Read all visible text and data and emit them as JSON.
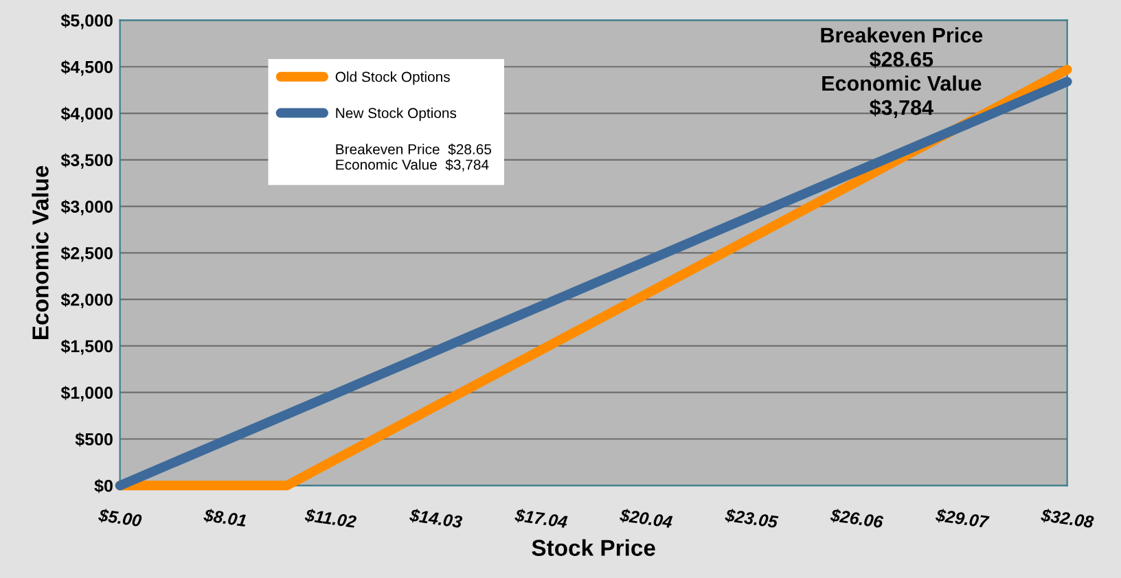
{
  "chart_data": {
    "type": "line",
    "xlabel": "Stock Price",
    "ylabel": "Economic Value",
    "series": [
      {
        "name": "Old Stock Options",
        "color": "#ff8c00",
        "x": [
          5.0,
          9.77,
          32.08
        ],
        "values": [
          0,
          0,
          4470
        ]
      },
      {
        "name": "New Stock Options",
        "color": "#3d6a9a",
        "x": [
          5.0,
          32.08
        ],
        "values": [
          0,
          4340
        ]
      }
    ],
    "xlim": [
      5.0,
      32.08
    ],
    "xticks": [
      {
        "value": 5.0,
        "label": "$5.00"
      },
      {
        "value": 8.01,
        "label": "$8.01"
      },
      {
        "value": 11.02,
        "label": "$11.02"
      },
      {
        "value": 14.03,
        "label": "$14.03"
      },
      {
        "value": 17.04,
        "label": "$17.04"
      },
      {
        "value": 20.04,
        "label": "$20.04"
      },
      {
        "value": 23.05,
        "label": "$23.05"
      },
      {
        "value": 26.06,
        "label": "$26.06"
      },
      {
        "value": 29.07,
        "label": "$29.07"
      },
      {
        "value": 32.08,
        "label": "$32.08"
      }
    ],
    "ylim": [
      0,
      5000
    ],
    "yticks": [
      {
        "value": 0,
        "label": "$0"
      },
      {
        "value": 500,
        "label": "$500"
      },
      {
        "value": 1000,
        "label": "$1,000"
      },
      {
        "value": 1500,
        "label": "$1,500"
      },
      {
        "value": 2000,
        "label": "$2,000"
      },
      {
        "value": 2500,
        "label": "$2,500"
      },
      {
        "value": 3000,
        "label": "$3,000"
      },
      {
        "value": 3500,
        "label": "$3,500"
      },
      {
        "value": 4000,
        "label": "$4,000"
      },
      {
        "value": 4500,
        "label": "$4,500"
      },
      {
        "value": 5000,
        "label": "$5,000"
      }
    ],
    "grid": "y",
    "legend": "top left",
    "marker": "none",
    "line_style": "solid",
    "annotations": [
      "Breakeven Price  $28.65\nEconomic Value  $3,784",
      "Breakeven Price\n$28.65\nEconomic Value\n$3,784"
    ]
  }
}
